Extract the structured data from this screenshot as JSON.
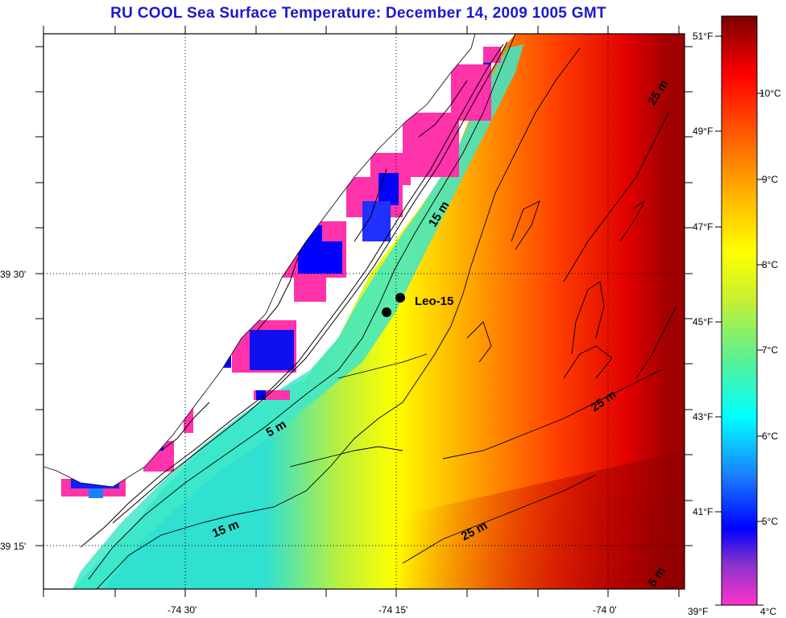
{
  "title": "RU COOL  Sea Surface Temperature:  December 14, 2009 1005 GMT",
  "lat_labels": [
    "39 30'",
    "39 15'"
  ],
  "lon_labels": [
    "-74 30'",
    "-74 15'",
    "-74 0'"
  ],
  "colorbar": {
    "fahrenheit": [
      "51°F",
      "49°F",
      "47°F",
      "45°F",
      "43°F",
      "41°F",
      "39°F"
    ],
    "celsius": [
      "10°C",
      "9°C",
      "8°C",
      "7°C",
      "6°C",
      "5°C",
      "4°C"
    ]
  },
  "station": {
    "label": "Leo-15"
  },
  "contour_labels": [
    "25 m",
    "15 m",
    "5 m",
    "15 m",
    "25 m",
    "25 m",
    "5 m"
  ]
}
